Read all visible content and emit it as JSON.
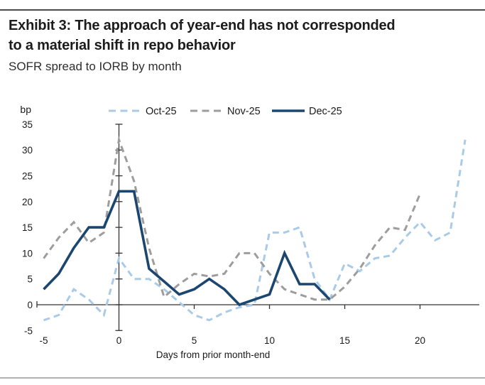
{
  "header": {
    "title_line1": "Exhibit 3: The approach of year-end has not corresponded",
    "title_line2": "to a material shift in repo behavior",
    "subtitle": "SOFR spread to IORB by month"
  },
  "chart_data": {
    "type": "line",
    "title": "Exhibit 3: The approach of year-end has not corresponded to a material shift in repo behavior",
    "subtitle": "SOFR spread to IORB by month",
    "xlabel": "Days from prior month-end",
    "ylabel": "bp",
    "x_ticks": [
      -5,
      0,
      5,
      10,
      15,
      20
    ],
    "y_ticks": [
      -5,
      0,
      5,
      10,
      15,
      20,
      25,
      30,
      35
    ],
    "xlim": [
      -5,
      23.5
    ],
    "ylim": [
      -5,
      35
    ],
    "grid": false,
    "legend_position": "top",
    "axis_color": "#333333",
    "series": [
      {
        "name": "Oct-25",
        "color": "#a9cbe8",
        "style": "dashed",
        "x": [
          -5,
          -4,
          -3,
          -2,
          -1,
          0,
          1,
          2,
          3,
          4,
          5,
          6,
          7,
          8,
          9,
          10,
          11,
          12,
          13,
          14,
          15,
          16,
          17,
          18,
          19,
          20,
          21,
          22,
          23
        ],
        "values": [
          -3,
          -2,
          3,
          1,
          -2,
          9,
          5,
          5,
          3,
          0.5,
          -2,
          -3,
          -1.5,
          -0.5,
          0,
          14,
          14,
          15,
          5,
          1,
          8,
          6.5,
          9,
          9.5,
          13,
          16,
          12.5,
          14,
          32
        ]
      },
      {
        "name": "Nov-25",
        "color": "#9d9d9d",
        "style": "dashed",
        "x": [
          -5,
          -4,
          -3,
          -2,
          -1,
          0,
          1,
          2,
          3,
          4,
          5,
          6,
          7,
          8,
          9,
          10,
          11,
          12,
          13,
          14,
          15,
          16,
          17,
          18,
          19,
          20
        ],
        "values": [
          9,
          13,
          16,
          12,
          14,
          32,
          24,
          11,
          1.5,
          4,
          6,
          5.5,
          6,
          10,
          10,
          6,
          3,
          2,
          1,
          1,
          3.5,
          7,
          11.5,
          15,
          14.5,
          21.5
        ]
      },
      {
        "name": "Dec-25",
        "color": "#1b4670",
        "style": "solid",
        "x": [
          -5,
          -4,
          -3,
          -2,
          -1,
          0,
          1,
          2,
          3,
          4,
          5,
          6,
          7,
          8,
          9,
          10,
          11,
          12,
          13,
          14
        ],
        "values": [
          3,
          6,
          11,
          15,
          15,
          22,
          22,
          7,
          4.5,
          2,
          3,
          5,
          3,
          0,
          1,
          2,
          10,
          4,
          4,
          1
        ]
      }
    ]
  }
}
